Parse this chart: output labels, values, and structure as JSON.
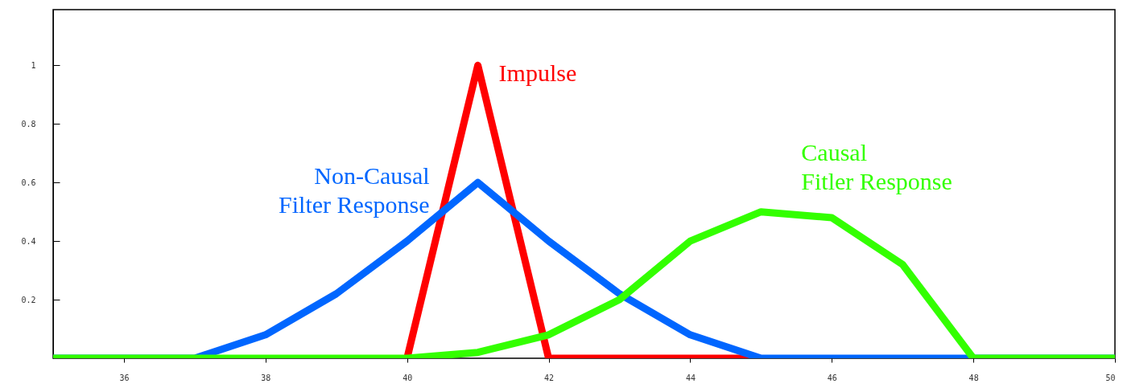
{
  "chart_data": {
    "type": "line",
    "x": [
      35,
      36,
      37,
      38,
      39,
      40,
      41,
      42,
      43,
      44,
      45,
      46,
      47,
      48,
      49,
      50
    ],
    "series": [
      {
        "name": "Impulse",
        "color": "#ff0000",
        "values": [
          null,
          null,
          null,
          null,
          null,
          0,
          1,
          0,
          0,
          0,
          0,
          null,
          null,
          null,
          null,
          null
        ]
      },
      {
        "name": "Non-Causal Filter Response",
        "color": "#0066ff",
        "values": [
          0,
          0,
          0,
          0.08,
          0.22,
          0.4,
          0.6,
          0.4,
          0.22,
          0.08,
          0,
          0,
          0,
          0,
          0,
          0
        ]
      },
      {
        "name": "Causal Fitler Response",
        "color": "#33ff00",
        "values": [
          0,
          0,
          0,
          0,
          0,
          0,
          0.02,
          0.08,
          0.2,
          0.4,
          0.5,
          0.48,
          0.32,
          0,
          0,
          0
        ]
      }
    ],
    "xlim": [
      35,
      50
    ],
    "xticks": [
      36,
      38,
      40,
      42,
      44,
      46,
      48,
      50
    ],
    "ylim": [
      0,
      1.19
    ],
    "yticks": [
      0.2,
      0.4,
      0.6,
      0.8,
      1
    ],
    "grid": false,
    "marker": "none",
    "line_style": "solid"
  }
}
